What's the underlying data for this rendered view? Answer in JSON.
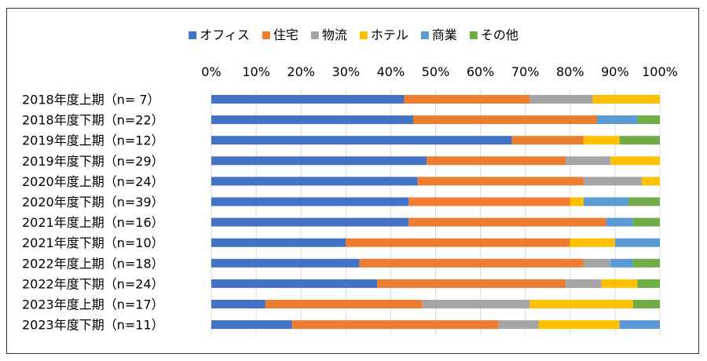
{
  "chart_data": {
    "type": "bar",
    "orientation": "horizontal",
    "stacked": "percent",
    "grid": true,
    "legend": "top",
    "xlim": [
      0,
      100
    ],
    "x_ticks": [
      "0%",
      "10%",
      "20%",
      "30%",
      "40%",
      "50%",
      "60%",
      "70%",
      "80%",
      "90%",
      "100%"
    ],
    "categories": [
      "2018年度上期（n=  7）",
      "2018年度下期（n=22）",
      "2019年度上期（n=12）",
      "2019年度下期（n=29）",
      "2020年度上期（n=24）",
      "2020年度下期（n=39）",
      "2021年度上期（n=16）",
      "2021年度下期（n=10）",
      "2022年度上期（n=18）",
      "2022年度下期（n=24）",
      "2023年度上期（n=17）",
      "2023年度下期（n=11）"
    ],
    "series": [
      {
        "name": "オフィス",
        "color": "#4472C4",
        "values": [
          43,
          45,
          67,
          48,
          46,
          44,
          44,
          30,
          33,
          37,
          12,
          18
        ]
      },
      {
        "name": "住宅",
        "color": "#ED7D31",
        "values": [
          28,
          41,
          16,
          31,
          37,
          36,
          44,
          50,
          50,
          42,
          35,
          46
        ]
      },
      {
        "name": "物流",
        "color": "#A5A5A5",
        "values": [
          14,
          0,
          0,
          10,
          13,
          0,
          0,
          0,
          6,
          8,
          24,
          9
        ]
      },
      {
        "name": "ホテル",
        "color": "#FFC000",
        "values": [
          15,
          0,
          8,
          11,
          4,
          3,
          0,
          10,
          0,
          8,
          23,
          18
        ]
      },
      {
        "name": "商業",
        "color": "#5B9BD5",
        "values": [
          0,
          9,
          0,
          0,
          0,
          10,
          6,
          10,
          5,
          0,
          0,
          9
        ]
      },
      {
        "name": "その他",
        "color": "#70AD47",
        "values": [
          0,
          5,
          9,
          0,
          0,
          7,
          6,
          0,
          6,
          5,
          6,
          0
        ]
      }
    ]
  }
}
